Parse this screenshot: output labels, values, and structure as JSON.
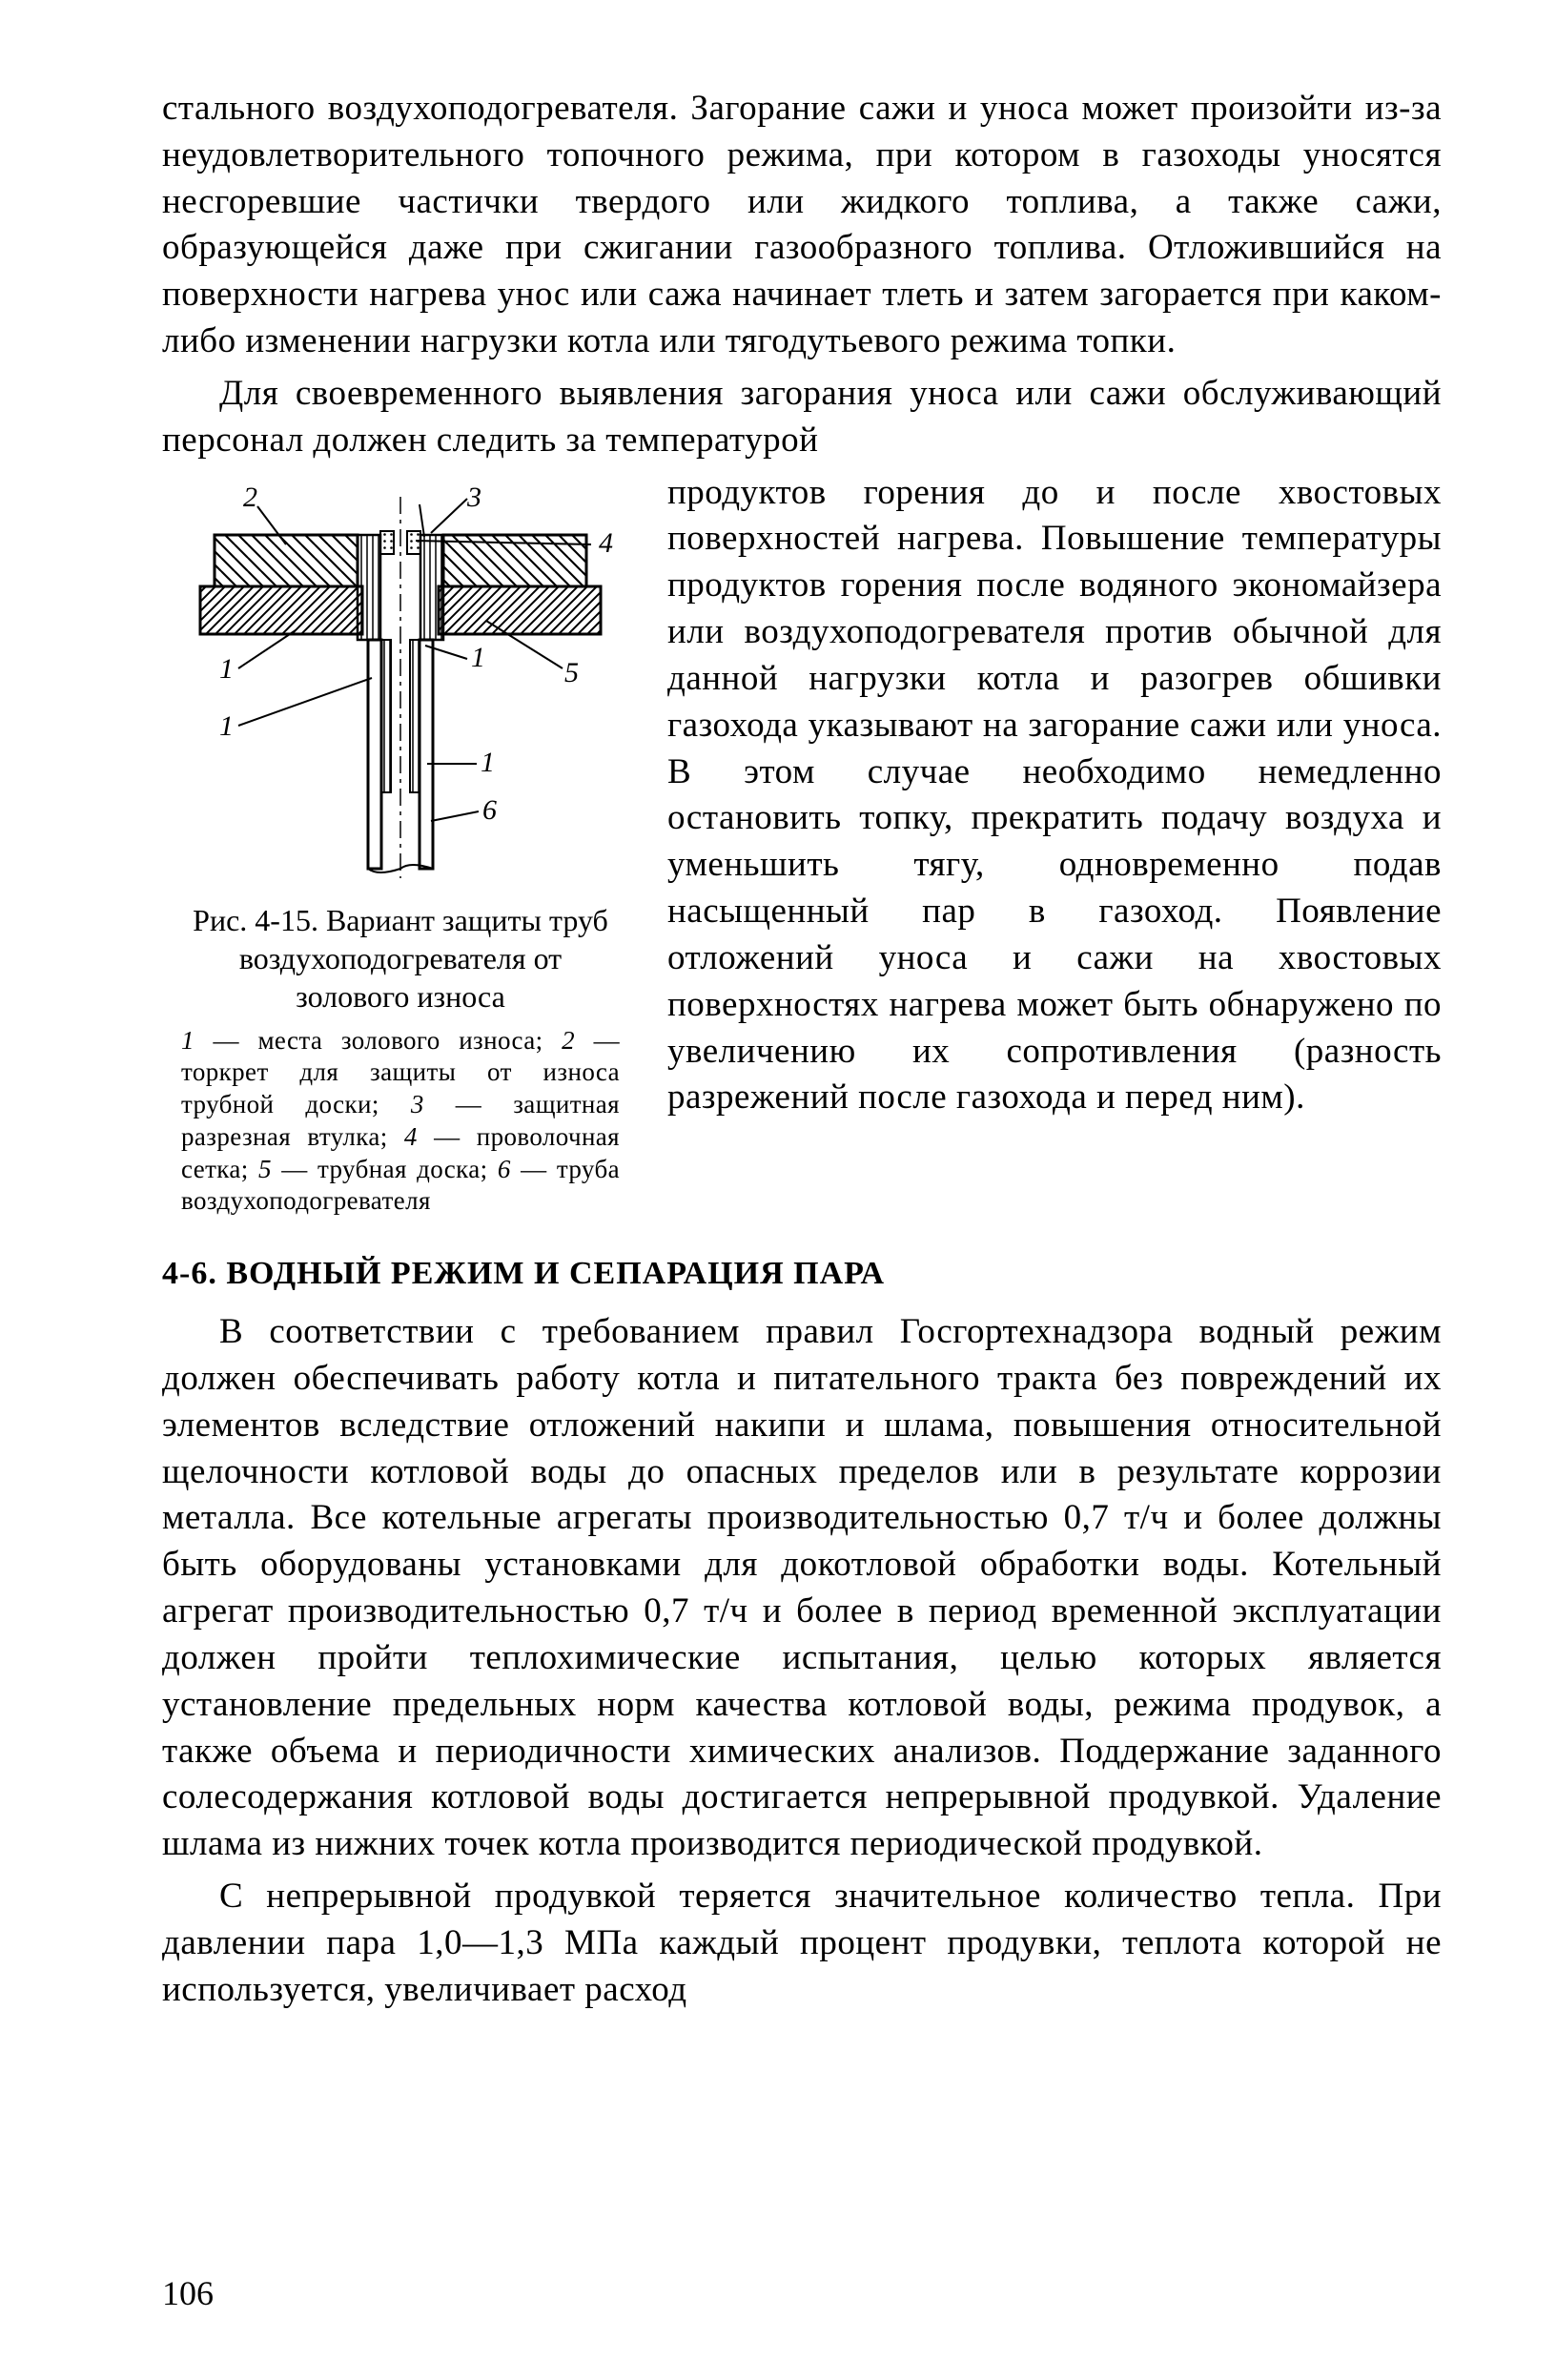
{
  "body": {
    "para1": "стального воздухоподогревателя. Загорание сажи и уноса может произойти из-за неудовлетворительного топочного режима, при котором в газоходы уносятся несгоревшие частички твердого или жидкого топлива, а также сажи, образующейся даже при сжигании газообразного топлива. Отложившийся на поверхности нагрева унос или сажа начинает тлеть и затем загорается при каком-либо изменении нагрузки котла или тягодутьевого режима топки.",
    "para2_left": "Для своевременного выявления загорания уноса или сажи обслуживающий персонал должен следить за температурой",
    "para2_right": "продуктов горения до и после хвостовых поверхностей нагрева. Повышение температуры продуктов горения после водяного экономайзера или воздухоподогревателя против обычной для данной нагрузки котла и разогрев обшивки газохода указывают на загорание сажи или уноса. В этом случае необходимо немедленно остановить топку, прекратить подачу воздуха и уменьшить тягу, одновременно подав насыщенный пар в газоход. Появление отложений уноса и сажи на хвостовых поверхностях нагрева может быть обнаружено по увеличению их сопротивления (разность разрежений после газохода и перед ним).",
    "section_heading": "4-6. ВОДНЫЙ РЕЖИМ И СЕПАРАЦИЯ ПАРА",
    "para3": "В соответствии с требованием правил Госгортехнадзора водный режим должен обеспечивать работу котла и питательного тракта без повреждений их элементов вследствие отложений накипи и шлама, повышения относительной щелочности котловой воды до опасных пределов или в результате коррозии металла. Все котельные агрегаты производительностью 0,7 т/ч и более должны быть оборудованы установками для докотловой обработки воды. Котельный агрегат производительностью 0,7 т/ч и более в период временной эксплуатации должен пройти теплохимические испытания, целью которых является установление предельных норм качества котловой воды, режима продувок, а также объема и периодичности химических анализов. Поддержание заданного солесодержания котловой воды достигается непрерывной продувкой. Удаление шлама из нижних точек котла производится периодической продувкой.",
    "para4": "С непрерывной продувкой теряется значительное количество тепла. При давлении пара 1,0—1,3 МПа каждый процент продувки, теплота которой не используется, увеличивает расход"
  },
  "figure": {
    "caption": "Рис. 4-15. Вариант защиты труб воздухоподогревателя от золового износа",
    "legend_html": "<span class=\"it\">1</span> — места золового износа; <span class=\"it\">2</span> — торкрет для защиты от износа трубной доски; <span class=\"it\">3</span> — защитная разрезная втулка; <span class=\"it\">4</span> — проволочная сетка; <span class=\"it\">5</span> — трубная доска; <span class=\"it\">6</span> — труба воздухоподогревателя",
    "labels": {
      "l1": "1",
      "l2": "2",
      "l3": "3",
      "l4": "4",
      "l5": "5",
      "l6": "6"
    },
    "colors": {
      "stroke": "#000000",
      "bg": "#ffffff"
    },
    "strokes": {
      "main": 3,
      "thin": 2,
      "leader": 2
    }
  },
  "page_number": "106"
}
